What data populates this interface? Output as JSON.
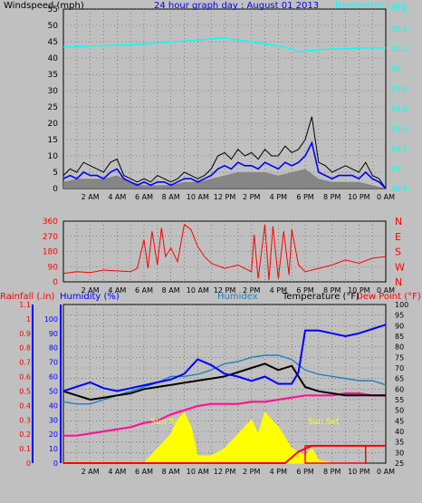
{
  "chart_data": [
    {
      "type": "line",
      "panel": "wind-barometer",
      "title": "24 hour graph day : August 01 2013",
      "ylabel": "Windspeed (mph)",
      "y2label": "Barometer (.in)",
      "ylim": [
        0,
        55
      ],
      "yticks": [
        "0",
        "5",
        "10",
        "15",
        "20",
        "25",
        "30",
        "35",
        "40",
        "45",
        "50",
        "55"
      ],
      "y2lim": [
        28.8,
        30.6
      ],
      "y2ticks": [
        "28.8",
        "29",
        "29.2",
        "29.4",
        "29.6",
        "29.8",
        "30",
        "30.2",
        "30.4",
        "30.6"
      ],
      "xticks": [
        "2 AM",
        "4 AM",
        "6 AM",
        "8 AM",
        "10 AM",
        "12 PM",
        "2 PM",
        "4 PM",
        "6 PM",
        "8 PM",
        "10 PM",
        "0 AM"
      ],
      "x_unit": "hours since midnight",
      "grid": true,
      "colors": {
        "gust": "#000000",
        "speed": "#0000ff",
        "average": "#808080",
        "barometer": "#00ffff"
      },
      "series": [
        {
          "name": "Gust",
          "x": [
            0,
            0.5,
            1,
            1.5,
            2,
            2.5,
            3,
            3.5,
            4,
            4.5,
            5,
            5.5,
            6,
            6.5,
            7,
            7.5,
            8,
            8.5,
            9,
            9.5,
            10,
            10.5,
            11,
            11.5,
            12,
            12.5,
            13,
            13.5,
            14,
            14.5,
            15,
            15.5,
            16,
            16.5,
            17,
            17.5,
            18,
            18.5,
            19,
            19.5,
            20,
            20.5,
            21,
            21.5,
            22,
            22.5,
            23,
            23.5,
            24
          ],
          "values": [
            4,
            6,
            5,
            8,
            7,
            6,
            5,
            8,
            9,
            4,
            3,
            2,
            3,
            2,
            4,
            3,
            2,
            3,
            5,
            4,
            3,
            4,
            6,
            10,
            11,
            9,
            12,
            10,
            11,
            9,
            12,
            10,
            10,
            13,
            11,
            12,
            15,
            22,
            8,
            7,
            5,
            6,
            7,
            6,
            5,
            8,
            4,
            3,
            0
          ]
        },
        {
          "name": "Speed",
          "x": [
            0,
            0.5,
            1,
            1.5,
            2,
            2.5,
            3,
            3.5,
            4,
            4.5,
            5,
            5.5,
            6,
            6.5,
            7,
            7.5,
            8,
            8.5,
            9,
            9.5,
            10,
            10.5,
            11,
            11.5,
            12,
            12.5,
            13,
            13.5,
            14,
            14.5,
            15,
            15.5,
            16,
            16.5,
            17,
            17.5,
            18,
            18.5,
            19,
            19.5,
            20,
            20.5,
            21,
            21.5,
            22,
            22.5,
            23,
            23.5,
            24
          ],
          "values": [
            3,
            4,
            3,
            5,
            4,
            4,
            3,
            5,
            6,
            3,
            2,
            1,
            2,
            1,
            2,
            2,
            1,
            2,
            3,
            3,
            2,
            3,
            4,
            6,
            7,
            6,
            8,
            7,
            7,
            6,
            8,
            7,
            6,
            8,
            7,
            8,
            10,
            14,
            5,
            4,
            3,
            4,
            4,
            4,
            3,
            5,
            3,
            2,
            0
          ]
        },
        {
          "name": "Average",
          "x": [
            0,
            1,
            2,
            3,
            4,
            5,
            6,
            7,
            8,
            9,
            10,
            11,
            12,
            13,
            14,
            15,
            16,
            17,
            18,
            19,
            20,
            21,
            22,
            23,
            24
          ],
          "values": [
            2,
            3,
            3,
            3,
            4,
            2,
            1,
            1,
            1,
            2,
            2,
            3,
            4,
            5,
            5,
            5,
            4,
            5,
            6,
            3,
            2,
            2,
            2,
            1,
            0
          ]
        },
        {
          "name": "Barometer",
          "x": [
            0,
            1,
            2,
            3,
            4,
            5,
            6,
            7,
            8,
            9,
            10,
            11,
            12,
            13,
            14,
            15,
            16,
            17,
            17.5,
            18,
            19,
            20,
            21,
            22,
            23,
            24
          ],
          "values": [
            30.22,
            30.22,
            30.23,
            30.23,
            30.24,
            30.24,
            30.25,
            30.26,
            30.27,
            30.28,
            30.29,
            30.3,
            30.31,
            30.29,
            30.27,
            30.25,
            30.23,
            30.2,
            30.17,
            30.18,
            30.19,
            30.2,
            30.2,
            30.21,
            30.21,
            30.21
          ]
        }
      ]
    },
    {
      "type": "line",
      "panel": "wind-direction",
      "ylim": [
        0,
        360
      ],
      "yticks": [
        "0",
        "90",
        "180",
        "270",
        "360"
      ],
      "y2ticks": [
        "N",
        "E",
        "S",
        "W",
        "N"
      ],
      "xticks": [
        "2 AM",
        "4 AM",
        "6 AM",
        "8 AM",
        "10 AM",
        "12 PM",
        "2 PM",
        "4 PM",
        "6 PM",
        "8 PM",
        "10 PM",
        "0 AM"
      ],
      "x_unit": "hours since midnight",
      "colors": {
        "direction": "#ff0000"
      },
      "series": [
        {
          "name": "Direction",
          "x": [
            0,
            1,
            2,
            3,
            4,
            5,
            5.5,
            6,
            6.3,
            6.6,
            7,
            7.3,
            7.6,
            8,
            8.5,
            9,
            9.5,
            10,
            10.5,
            11,
            12,
            13,
            14,
            14.2,
            14.5,
            15,
            15.3,
            15.6,
            16,
            16.4,
            16.8,
            17,
            17.5,
            18,
            19,
            20,
            21,
            22,
            23,
            24
          ],
          "values": [
            50,
            60,
            55,
            70,
            65,
            60,
            80,
            250,
            80,
            300,
            100,
            320,
            150,
            200,
            120,
            340,
            310,
            210,
            150,
            110,
            80,
            100,
            60,
            280,
            20,
            340,
            10,
            330,
            20,
            300,
            40,
            310,
            100,
            60,
            80,
            100,
            130,
            110,
            140,
            150
          ]
        }
      ]
    },
    {
      "type": "line",
      "panel": "temp-humidity-rain",
      "ylabel": "Rainfall (.in)",
      "ylabel2": "Humidity (%)",
      "label_humidex": "Humidex",
      "y2label": "Temperature (°F)",
      "y2label2": "Dew Point (°F)",
      "rain_ticks": [
        "0",
        "0.1",
        "0.2",
        "0.3",
        "0.4",
        "0.5",
        "0.6",
        "0.7",
        "0.8",
        "0.9",
        "1",
        "1.1"
      ],
      "humidity_ticks": [
        "0",
        "10",
        "20",
        "30",
        "40",
        "50",
        "60",
        "70",
        "80",
        "90",
        "100"
      ],
      "temp_ticks": [
        "25",
        "30",
        "35",
        "40",
        "45",
        "50",
        "55",
        "60",
        "65",
        "70",
        "75",
        "80",
        "85",
        "90",
        "95",
        "100"
      ],
      "rain_lim": [
        0,
        1.1
      ],
      "humidity_lim": [
        0,
        110
      ],
      "temp_lim": [
        25,
        100
      ],
      "xticks": [
        "2 AM",
        "4 AM",
        "6 AM",
        "8 AM",
        "10 AM",
        "12 PM",
        "2 PM",
        "4 PM",
        "6 PM",
        "8 PM",
        "10 PM",
        "0 AM"
      ],
      "x_unit": "hours since midnight",
      "annotations": {
        "sunrise": "Sun Rise",
        "sunset": "Sun Set"
      },
      "colors": {
        "humidity": "#0000ff",
        "temperature": "#000000",
        "dewpoint": "#ff1493",
        "humidex": "#2080c0",
        "rain": "#ff0000",
        "solar": "#ffff00"
      },
      "series": [
        {
          "name": "Temperature",
          "x": [
            0,
            1,
            2,
            3,
            4,
            5,
            6,
            7,
            8,
            9,
            10,
            11,
            12,
            13,
            14,
            15,
            16,
            17,
            18,
            19,
            20,
            21,
            22,
            23,
            24
          ],
          "values": [
            59,
            57,
            55,
            56,
            57,
            58,
            60,
            61,
            62,
            63,
            64,
            65,
            66,
            68,
            70,
            72,
            69,
            71,
            61,
            59,
            58,
            57,
            57,
            57,
            57
          ]
        },
        {
          "name": "Humidex",
          "x": [
            0,
            1,
            2,
            3,
            4,
            5,
            6,
            7,
            8,
            9,
            10,
            11,
            12,
            13,
            14,
            15,
            16,
            17,
            18,
            19,
            20,
            21,
            22,
            23,
            24
          ],
          "values": [
            54,
            53,
            53,
            55,
            57,
            59,
            61,
            63,
            66,
            66,
            67,
            69,
            72,
            73,
            75,
            76,
            76,
            74,
            69,
            67,
            66,
            65,
            64,
            64,
            62
          ]
        },
        {
          "name": "Dew Point",
          "x": [
            0,
            1,
            2,
            3,
            4,
            5,
            6,
            7,
            8,
            9,
            10,
            11,
            12,
            13,
            14,
            15,
            16,
            17,
            18,
            19,
            20,
            21,
            22,
            23,
            24
          ],
          "values": [
            38,
            38,
            39,
            40,
            41,
            42,
            44,
            45,
            48,
            50,
            52,
            53,
            53,
            53,
            54,
            54,
            55,
            56,
            57,
            57,
            57,
            58,
            58,
            57,
            57
          ]
        },
        {
          "name": "Humidity",
          "x": [
            0,
            1,
            2,
            3,
            4,
            5,
            6,
            7,
            8,
            9,
            10,
            11,
            12,
            13,
            14,
            15,
            16,
            17,
            17.5,
            18,
            19,
            20,
            21,
            22,
            23,
            24
          ],
          "values": [
            50,
            53,
            56,
            52,
            50,
            52,
            54,
            56,
            58,
            62,
            72,
            68,
            62,
            60,
            57,
            60,
            55,
            55,
            63,
            92,
            92,
            90,
            88,
            90,
            93,
            96
          ]
        },
        {
          "name": "Rainfall",
          "x": [
            0,
            16.5,
            17.5,
            18,
            18.5,
            24
          ],
          "values": [
            0,
            0,
            0.08,
            0.1,
            0.12,
            0.12
          ]
        },
        {
          "name": "Solar",
          "x": [
            6,
            7,
            8,
            8.5,
            9,
            9.5,
            10,
            11,
            12,
            13,
            14,
            14.5,
            15,
            16,
            17,
            18,
            18.5,
            19,
            20
          ],
          "values": [
            0,
            0.1,
            0.2,
            0.3,
            0.35,
            0.25,
            0.05,
            0.05,
            0.1,
            0.2,
            0.3,
            0.2,
            0.35,
            0.25,
            0.1,
            0.05,
            0.1,
            0.02,
            0
          ]
        }
      ]
    }
  ]
}
